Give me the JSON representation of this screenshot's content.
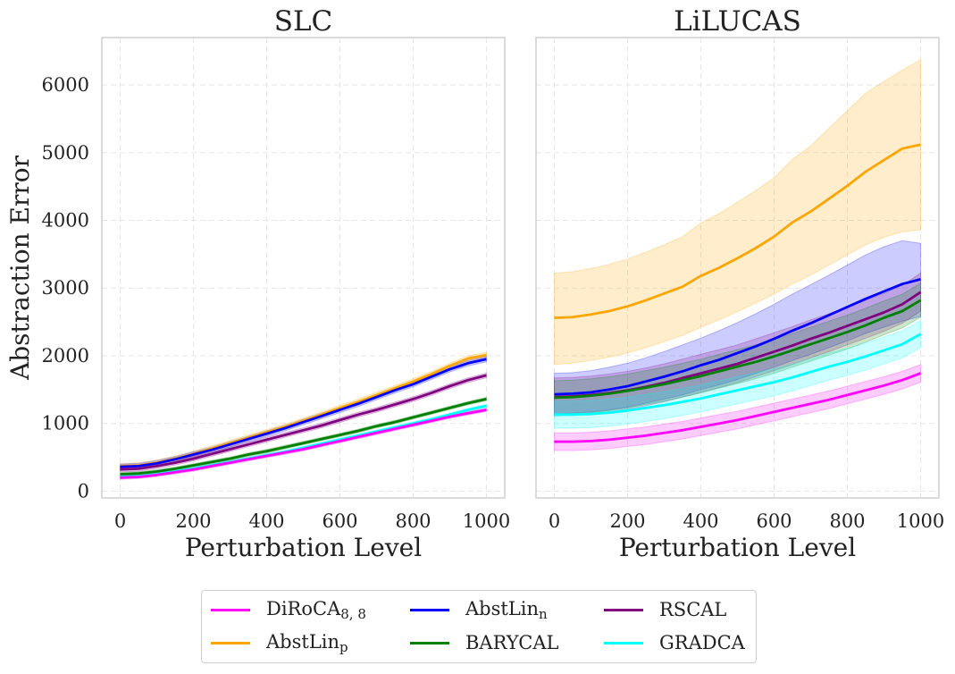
{
  "chart_data": [
    {
      "type": "line",
      "title": "SLC",
      "xlabel": "Perturbation Level",
      "ylabel": "Abstraction Error",
      "xlim": [
        -50,
        1050
      ],
      "ylim": [
        -100,
        6700
      ],
      "xticks": [
        0,
        200,
        400,
        600,
        800,
        1000
      ],
      "yticks": [
        0,
        1000,
        2000,
        3000,
        4000,
        5000,
        6000
      ],
      "grid": true,
      "x": [
        0,
        50,
        100,
        150,
        200,
        250,
        300,
        350,
        400,
        450,
        500,
        550,
        600,
        650,
        700,
        750,
        800,
        850,
        900,
        950,
        1000
      ],
      "series": [
        {
          "name": "AbstLin",
          "sub": "p",
          "color": "#FFA500",
          "values": [
            370,
            380,
            420,
            480,
            550,
            630,
            710,
            790,
            870,
            950,
            1040,
            1130,
            1230,
            1320,
            1420,
            1520,
            1620,
            1730,
            1850,
            1960,
            2010
          ],
          "band": 40
        },
        {
          "name": "AbstLin",
          "sub": "n",
          "color": "#0000FF",
          "values": [
            360,
            370,
            410,
            470,
            540,
            610,
            690,
            770,
            850,
            930,
            1020,
            1110,
            1200,
            1290,
            1390,
            1490,
            1580,
            1690,
            1800,
            1890,
            1950
          ],
          "band": 40
        },
        {
          "name": "RSCAL",
          "sub": "",
          "color": "#800080",
          "values": [
            320,
            330,
            370,
            420,
            480,
            550,
            620,
            690,
            760,
            830,
            900,
            970,
            1050,
            1130,
            1200,
            1280,
            1360,
            1450,
            1550,
            1640,
            1710
          ],
          "band": 35
        },
        {
          "name": "BARYCAL",
          "sub": "",
          "color": "#008000",
          "values": [
            250,
            260,
            290,
            330,
            380,
            430,
            480,
            540,
            590,
            650,
            710,
            770,
            830,
            890,
            960,
            1020,
            1090,
            1160,
            1230,
            1300,
            1360
          ],
          "band": 25
        },
        {
          "name": "GRADCA",
          "sub": "",
          "color": "#00FFFF",
          "values": [
            210,
            220,
            250,
            290,
            330,
            380,
            430,
            480,
            530,
            580,
            640,
            700,
            760,
            820,
            880,
            940,
            1000,
            1060,
            1130,
            1200,
            1260
          ],
          "band": 25
        },
        {
          "name": "DiRoCA",
          "sub": "8, 8",
          "color": "#FF00FF",
          "values": [
            200,
            210,
            240,
            280,
            320,
            370,
            420,
            470,
            520,
            570,
            620,
            680,
            740,
            800,
            860,
            920,
            980,
            1040,
            1100,
            1150,
            1200
          ],
          "band": 25
        }
      ]
    },
    {
      "type": "line",
      "title": "LiLUCAS",
      "xlabel": "Perturbation Level",
      "ylabel": "",
      "xlim": [
        -50,
        1050
      ],
      "ylim": [
        -100,
        6700
      ],
      "xticks": [
        0,
        200,
        400,
        600,
        800,
        1000
      ],
      "yticks": [
        0,
        1000,
        2000,
        3000,
        4000,
        5000,
        6000
      ],
      "grid": true,
      "x": [
        0,
        50,
        100,
        150,
        200,
        250,
        300,
        350,
        400,
        450,
        500,
        550,
        600,
        650,
        700,
        750,
        800,
        850,
        900,
        950,
        1000
      ],
      "series": [
        {
          "name": "AbstLin",
          "sub": "p",
          "color": "#FFA500",
          "values": [
            2560,
            2570,
            2610,
            2660,
            2730,
            2820,
            2920,
            3020,
            3180,
            3300,
            3440,
            3590,
            3760,
            3970,
            4130,
            4320,
            4510,
            4720,
            4890,
            5060,
            5120
          ],
          "lower": [
            1870,
            1890,
            1930,
            1980,
            2040,
            2120,
            2210,
            2300,
            2420,
            2530,
            2650,
            2780,
            2910,
            3060,
            3190,
            3340,
            3490,
            3640,
            3750,
            3830,
            3860
          ],
          "upper": [
            3220,
            3240,
            3290,
            3350,
            3430,
            3530,
            3640,
            3760,
            3960,
            4100,
            4270,
            4440,
            4630,
            4900,
            5100,
            5360,
            5620,
            5880,
            6050,
            6220,
            6370
          ]
        },
        {
          "name": "AbstLin",
          "sub": "n",
          "color": "#0000FF",
          "values": [
            1430,
            1440,
            1460,
            1500,
            1550,
            1620,
            1690,
            1770,
            1860,
            1940,
            2040,
            2140,
            2250,
            2370,
            2480,
            2600,
            2720,
            2840,
            2950,
            3060,
            3130
          ],
          "lower": [
            1140,
            1150,
            1170,
            1200,
            1240,
            1300,
            1360,
            1420,
            1500,
            1570,
            1650,
            1740,
            1830,
            1930,
            2020,
            2120,
            2220,
            2330,
            2420,
            2510,
            2580
          ],
          "upper": [
            1740,
            1750,
            1780,
            1830,
            1890,
            1970,
            2060,
            2160,
            2260,
            2370,
            2490,
            2620,
            2760,
            2910,
            3050,
            3190,
            3340,
            3490,
            3610,
            3700,
            3660
          ]
        },
        {
          "name": "RSCAL",
          "sub": "",
          "color": "#800080",
          "values": [
            1390,
            1400,
            1420,
            1450,
            1490,
            1540,
            1600,
            1670,
            1740,
            1810,
            1880,
            1970,
            2060,
            2150,
            2250,
            2340,
            2440,
            2540,
            2640,
            2760,
            2940
          ],
          "band": 280
        },
        {
          "name": "BARYCAL",
          "sub": "",
          "color": "#008000",
          "values": [
            1380,
            1390,
            1410,
            1440,
            1480,
            1530,
            1580,
            1640,
            1700,
            1770,
            1840,
            1910,
            1990,
            2080,
            2170,
            2260,
            2350,
            2450,
            2560,
            2660,
            2820
          ],
          "band": 250
        },
        {
          "name": "GRADCA",
          "sub": "",
          "color": "#00FFFF",
          "values": [
            1130,
            1130,
            1140,
            1160,
            1190,
            1230,
            1270,
            1320,
            1370,
            1430,
            1490,
            1550,
            1610,
            1680,
            1760,
            1840,
            1910,
            1990,
            2080,
            2170,
            2320
          ],
          "band": 200
        },
        {
          "name": "DiRoCA",
          "sub": "8, 8",
          "color": "#FF00FF",
          "values": [
            730,
            730,
            740,
            760,
            790,
            820,
            860,
            900,
            950,
            1000,
            1050,
            1110,
            1170,
            1230,
            1290,
            1350,
            1420,
            1490,
            1560,
            1640,
            1740
          ],
          "band": 130
        }
      ]
    }
  ],
  "legend": {
    "placement": "bottom-center",
    "items": [
      {
        "name": "DiRoCA",
        "sub": "8, 8",
        "color": "#FF00FF"
      },
      {
        "name": "AbstLin",
        "sub": "p",
        "color": "#FFA500"
      },
      {
        "name": "AbstLin",
        "sub": "n",
        "color": "#0000FF"
      },
      {
        "name": "BARYCAL",
        "sub": "",
        "color": "#008000"
      },
      {
        "name": "RSCAL",
        "sub": "",
        "color": "#800080"
      },
      {
        "name": "GRADCA",
        "sub": "",
        "color": "#00FFFF"
      }
    ]
  }
}
